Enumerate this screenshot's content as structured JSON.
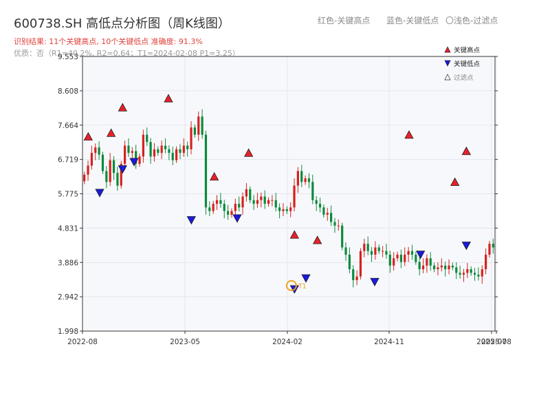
{
  "header": {
    "title": "600738.SH 高低点分析图（周K线图）",
    "legend_top": [
      "红色-关键高点",
      "蓝色-关键低点",
      "〇浅色-过滤点"
    ],
    "result_line": "识别结果: 11个关键高点, 10个关键低点  准确度: 91.3%",
    "quality_line": "优质：否（R1=40.2%, R2=0.64；T1=2024-02-08 P1=3.25）"
  },
  "chart_data": {
    "type": "candlestick",
    "title": "600738.SH 高低点分析图（周K线图）",
    "y_ticks": [
      "9.553",
      "8.608",
      "7.664",
      "6.719",
      "5.775",
      "4.831",
      "3.886",
      "2.942",
      "1.998"
    ],
    "ylim": [
      1.998,
      9.553
    ],
    "x_ticks": [
      "2022-08",
      "2023-05",
      "2024-02",
      "2024-11",
      "2025-07",
      "2025-08"
    ],
    "xlim": [
      0,
      112
    ],
    "grid": true,
    "legend": {
      "position": "top-right",
      "items": [
        {
          "label": "关键高点",
          "color": "#e8202a"
        },
        {
          "label": "关键低点",
          "color": "#1a1adc"
        },
        {
          "label": "过滤点",
          "color": "#ffffff"
        }
      ]
    },
    "colors": {
      "up": "#d7201f",
      "down": "#0a8a3c",
      "high": "#e8202a",
      "low": "#1a1adc",
      "t1": "#f0a020"
    },
    "close": [
      6.3,
      6.55,
      6.9,
      7.05,
      6.85,
      6.4,
      6.1,
      6.7,
      6.35,
      6.0,
      6.6,
      7.1,
      6.9,
      6.95,
      6.6,
      6.8,
      7.4,
      7.2,
      6.8,
      7.0,
      6.9,
      7.1,
      7.0,
      6.9,
      6.7,
      7.0,
      6.9,
      7.1,
      7.0,
      7.6,
      7.4,
      7.9,
      7.4,
      5.4,
      5.3,
      5.5,
      5.6,
      5.5,
      5.3,
      5.2,
      5.3,
      5.5,
      5.4,
      5.7,
      5.9,
      5.6,
      5.5,
      5.6,
      5.7,
      5.5,
      5.6,
      5.6,
      5.4,
      5.3,
      5.35,
      5.3,
      5.4,
      6.0,
      6.4,
      6.1,
      6.2,
      6.1,
      5.6,
      5.5,
      5.4,
      5.2,
      5.25,
      5.0,
      4.9,
      4.9,
      4.3,
      4.1,
      3.7,
      3.4,
      3.5,
      4.2,
      4.4,
      4.2,
      4.1,
      4.3,
      4.2,
      4.2,
      4.1,
      3.8,
      4.0,
      4.1,
      3.9,
      4.1,
      4.2,
      4.1,
      3.9,
      3.7,
      3.8,
      4.0,
      3.8,
      3.7,
      3.75,
      3.8,
      3.7,
      3.8,
      3.75,
      3.6,
      3.55,
      3.6,
      3.7,
      3.6,
      3.55,
      3.5,
      3.7,
      4.1,
      4.4,
      4.3
    ],
    "key_highs": [
      {
        "date": "2022-08",
        "price": 7.25
      },
      {
        "date": "2022-10",
        "price": 7.35
      },
      {
        "date": "2022-11",
        "price": 8.05
      },
      {
        "date": "2023-03",
        "price": 8.3
      },
      {
        "date": "2023-07",
        "price": 6.15
      },
      {
        "date": "2023-10",
        "price": 6.8
      },
      {
        "date": "2024-02",
        "price": 4.55
      },
      {
        "date": "2024-04",
        "price": 4.4
      },
      {
        "date": "2024-12",
        "price": 7.3
      },
      {
        "date": "2025-04",
        "price": 6.0
      },
      {
        "date": "2025-05",
        "price": 6.85
      }
    ],
    "key_lows": [
      {
        "date": "2022-09",
        "price": 5.9
      },
      {
        "date": "2022-11",
        "price": 6.55
      },
      {
        "date": "2022-12",
        "price": 6.75
      },
      {
        "date": "2023-05",
        "price": 5.15
      },
      {
        "date": "2023-09",
        "price": 5.2
      },
      {
        "date": "2024-02",
        "price": 3.25
      },
      {
        "date": "2024-03",
        "price": 3.55
      },
      {
        "date": "2024-09",
        "price": 3.45
      },
      {
        "date": "2025-01",
        "price": 4.2
      },
      {
        "date": "2025-05",
        "price": 4.45
      }
    ],
    "t1_marker": {
      "label": "T1",
      "date": "2024-02-08",
      "price": 3.25
    }
  }
}
